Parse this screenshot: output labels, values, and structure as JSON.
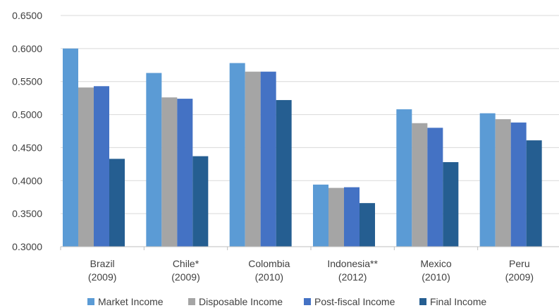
{
  "chart_data": {
    "type": "bar",
    "title": "",
    "xlabel": "",
    "ylabel": "",
    "ylim": [
      0.3,
      0.65
    ],
    "yticks": [
      "0.3000",
      "0.3500",
      "0.4000",
      "0.4500",
      "0.5000",
      "0.5500",
      "0.6000",
      "0.6500"
    ],
    "grid": true,
    "legend_position": "bottom",
    "categories": [
      [
        "Brazil",
        "(2009)"
      ],
      [
        "Chile*",
        "(2009)"
      ],
      [
        "Colombia",
        "(2010)"
      ],
      [
        "Indonesia**",
        "(2012)"
      ],
      [
        "Mexico",
        "(2010)"
      ],
      [
        "Peru",
        "(2009)"
      ]
    ],
    "series": [
      {
        "name": "Market Income",
        "color": "#5b9bd5",
        "values": [
          0.6,
          0.563,
          0.578,
          0.394,
          0.508,
          0.502
        ]
      },
      {
        "name": "Disposable Income",
        "color": "#a5a5a5",
        "values": [
          0.541,
          0.526,
          0.565,
          0.389,
          0.487,
          0.493
        ]
      },
      {
        "name": "Post-fiscal Income",
        "color": "#4472c4",
        "values": [
          0.543,
          0.524,
          0.565,
          0.39,
          0.48,
          0.488
        ]
      },
      {
        "name": "Final Income",
        "color": "#255e91",
        "values": [
          0.433,
          0.437,
          0.522,
          0.366,
          0.428,
          0.461
        ]
      }
    ]
  }
}
